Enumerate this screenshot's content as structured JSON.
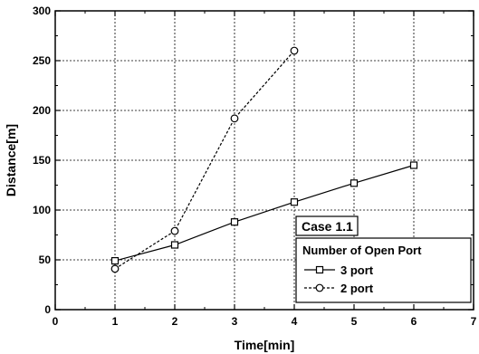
{
  "chart_data": {
    "type": "line",
    "title": "",
    "xlabel": "Time[min]",
    "ylabel": "Distance[m]",
    "xlim": [
      0,
      7
    ],
    "ylim": [
      0,
      300
    ],
    "xticks": [
      "0",
      "1",
      "2",
      "3",
      "4",
      "5",
      "6",
      "7"
    ],
    "yticks": [
      "0",
      "50",
      "100",
      "150",
      "200",
      "250",
      "300"
    ],
    "grid": true,
    "legend_title": "Number of Open Port",
    "legend_position": "bottom-right",
    "annotation": "Case 1.1",
    "series": [
      {
        "name": "3 port",
        "marker": "square",
        "line_style": "solid",
        "x": [
          1,
          2,
          3,
          4,
          5,
          6
        ],
        "y": [
          49,
          65,
          88,
          108,
          127,
          145
        ]
      },
      {
        "name": "2 port",
        "marker": "circle",
        "line_style": "dashed",
        "x": [
          1,
          2,
          3,
          4
        ],
        "y": [
          41,
          79,
          192,
          260
        ]
      }
    ]
  }
}
